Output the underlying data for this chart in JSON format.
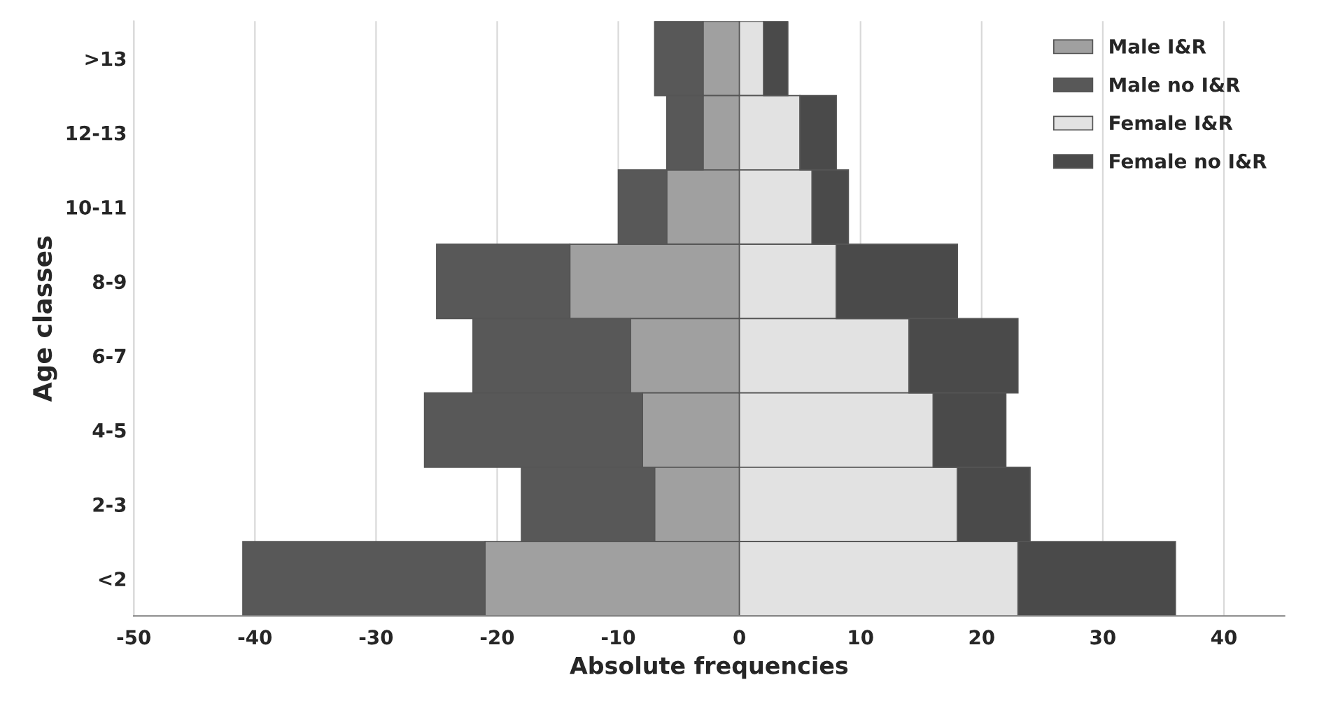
{
  "chart_data": {
    "type": "bar",
    "orientation": "horizontal",
    "stacked": true,
    "xlabel": "Absolute frequencies",
    "ylabel": "Age classes",
    "categories": [
      ">13",
      "12-13",
      "10-11",
      "8-9",
      "6-7",
      "4-5",
      "2-3",
      "<2"
    ],
    "series": [
      {
        "name": "Male I&R",
        "color": "#a0a0a0",
        "values": [
          -3,
          -3,
          -6,
          -14,
          -9,
          -8,
          -7,
          -21
        ]
      },
      {
        "name": "Male no I&R",
        "color": "#585858",
        "values": [
          -4,
          -3,
          -4,
          -11,
          -13,
          -18,
          -11,
          -20
        ]
      },
      {
        "name": "Female I&R",
        "color": "#e2e2e2",
        "values": [
          2,
          5,
          6,
          8,
          14,
          16,
          18,
          23
        ]
      },
      {
        "name": "Female no I&R",
        "color": "#4a4a4a",
        "values": [
          2,
          3,
          3,
          10,
          9,
          6,
          6,
          13
        ]
      }
    ],
    "xlim": [
      -50,
      45
    ],
    "xticks": [
      -50,
      -40,
      -30,
      -20,
      -10,
      0,
      10,
      20,
      30,
      40
    ],
    "grid": "x",
    "legend": "top right"
  }
}
